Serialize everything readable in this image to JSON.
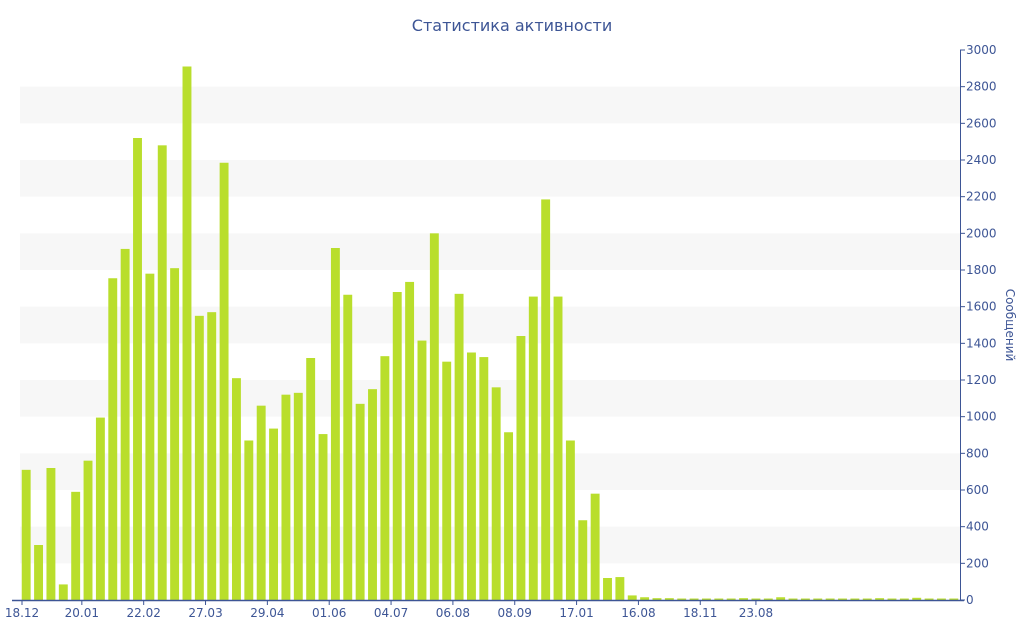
{
  "chart_data": {
    "type": "bar",
    "title": "Статистика активности",
    "ylabel": "Сообщений",
    "xlabel": "",
    "ylim": [
      0,
      3000
    ],
    "y_ticks": [
      0,
      200,
      400,
      600,
      800,
      1000,
      1200,
      1400,
      1600,
      1800,
      2000,
      2200,
      2400,
      2600,
      2800,
      3000
    ],
    "x_tick_labels": [
      {
        "label": "18.12",
        "index": 0
      },
      {
        "label": "20.01",
        "index": 5
      },
      {
        "label": "22.02",
        "index": 10
      },
      {
        "label": "27.03",
        "index": 15
      },
      {
        "label": "29.04",
        "index": 20
      },
      {
        "label": "01.06",
        "index": 25
      },
      {
        "label": "04.07",
        "index": 30
      },
      {
        "label": "06.08",
        "index": 35
      },
      {
        "label": "08.09",
        "index": 40
      },
      {
        "label": "17.01",
        "index": 45
      },
      {
        "label": "16.08",
        "index": 50
      },
      {
        "label": "18.11",
        "index": 55
      },
      {
        "label": "23.08",
        "index": 59.5
      }
    ],
    "values": [
      710,
      300,
      720,
      85,
      590,
      760,
      995,
      1755,
      1915,
      2520,
      1780,
      2480,
      1810,
      2910,
      1550,
      1570,
      2385,
      1210,
      870,
      1060,
      935,
      1120,
      1130,
      1320,
      905,
      1920,
      1665,
      1070,
      1150,
      1330,
      1680,
      1735,
      1415,
      2000,
      1300,
      1670,
      1350,
      1325,
      1160,
      915,
      1440,
      1655,
      2185,
      1655,
      870,
      435,
      580,
      120,
      125,
      25,
      15,
      10,
      10,
      8,
      8,
      8,
      8,
      8,
      10,
      8,
      8,
      15,
      8,
      8,
      8,
      8,
      8,
      8,
      8,
      10,
      8,
      8,
      12,
      8,
      8,
      8
    ],
    "bar_color": "#b9de2c",
    "axis_color": "#3d5595",
    "band_color": "#f7f7f7",
    "y_axis_side": "right",
    "grid": "alternating horizontal bands"
  }
}
